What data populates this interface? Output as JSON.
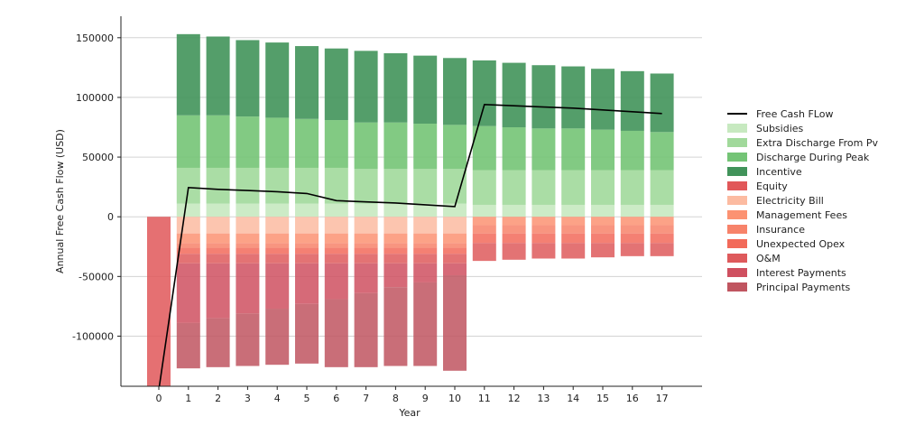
{
  "chart_data": {
    "type": "bar",
    "title": "",
    "xlabel": "Year",
    "ylabel": "Annual Free Cash Flow (USD)",
    "ylim": [
      -142000,
      168000
    ],
    "yticks": [
      150000,
      100000,
      50000,
      0,
      -50000,
      -100000
    ],
    "categories": [
      "0",
      "1",
      "2",
      "3",
      "4",
      "5",
      "6",
      "7",
      "8",
      "9",
      "10",
      "11",
      "12",
      "13",
      "14",
      "15",
      "16",
      "17"
    ],
    "positive_series": [
      {
        "name": "Subsidies",
        "color": "#c7e9c0",
        "values": [
          0,
          11000,
          11000,
          11000,
          11000,
          11000,
          11000,
          11000,
          11000,
          11000,
          11000,
          10000,
          10000,
          10000,
          10000,
          10000,
          10000,
          10000
        ]
      },
      {
        "name": "Extra Discharge From Pv",
        "color": "#a1d99b",
        "values": [
          0,
          30000,
          30000,
          30000,
          30000,
          30000,
          30000,
          29000,
          29000,
          29000,
          29000,
          29000,
          29000,
          29000,
          29000,
          29000,
          29000,
          29000
        ]
      },
      {
        "name": "Discharge During Peak",
        "color": "#74c476",
        "values": [
          0,
          44000,
          44000,
          43000,
          42000,
          41000,
          40000,
          39000,
          39000,
          38000,
          37000,
          37000,
          36000,
          35000,
          35000,
          34000,
          33000,
          32000
        ]
      },
      {
        "name": "Incentive",
        "color": "#41935a",
        "values": [
          0,
          68000,
          66000,
          64000,
          63000,
          61000,
          60000,
          60000,
          58000,
          57000,
          56000,
          55000,
          54000,
          53000,
          52000,
          51000,
          50000,
          49000
        ]
      }
    ],
    "negative_series": [
      {
        "name": "Equity",
        "color": "#e15759",
        "values": [
          145000,
          0,
          0,
          0,
          0,
          0,
          0,
          0,
          0,
          0,
          0,
          0,
          0,
          0,
          0,
          0,
          0,
          0
        ]
      },
      {
        "name": "Electricity Bill",
        "color": "#fcbba1",
        "values": [
          0,
          14000,
          14000,
          14000,
          14000,
          14000,
          14000,
          14000,
          14000,
          14000,
          14000,
          0,
          0,
          0,
          0,
          0,
          0,
          0
        ]
      },
      {
        "name": "Management Fees",
        "color": "#fc9272",
        "values": [
          0,
          8000,
          8000,
          8000,
          8000,
          8000,
          8000,
          8000,
          8000,
          8000,
          8000,
          7000,
          7000,
          7000,
          7000,
          7000,
          7000,
          7000
        ]
      },
      {
        "name": "Insurance",
        "color": "#f7836a",
        "values": [
          0,
          4000,
          4000,
          4000,
          4000,
          4000,
          4000,
          4000,
          4000,
          4000,
          4000,
          7000,
          7000,
          7000,
          7000,
          7000,
          7000,
          7000
        ]
      },
      {
        "name": "Unexpected Opex",
        "color": "#f26a5a",
        "values": [
          0,
          5000,
          5000,
          5000,
          5000,
          5000,
          5000,
          5000,
          5000,
          5000,
          5000,
          8000,
          8000,
          8000,
          8000,
          8000,
          8000,
          8000
        ]
      },
      {
        "name": "O&M",
        "color": "#de5a5c",
        "values": [
          0,
          8000,
          8000,
          8000,
          8000,
          8000,
          8000,
          8000,
          8000,
          8000,
          8000,
          15000,
          14000,
          13000,
          13000,
          12000,
          11000,
          11000
        ]
      },
      {
        "name": "Interest Payments",
        "color": "#cf5060",
        "values": [
          0,
          50000,
          46000,
          42000,
          38000,
          34000,
          30000,
          25000,
          20000,
          16000,
          10000,
          0,
          0,
          0,
          0,
          0,
          0,
          0
        ]
      },
      {
        "name": "Principal Payments",
        "color": "#c05560",
        "values": [
          0,
          38000,
          41000,
          44000,
          47000,
          50000,
          57000,
          62000,
          66000,
          70000,
          80000,
          0,
          0,
          0,
          0,
          0,
          0,
          0
        ]
      }
    ],
    "line": {
      "name": "Free Cash FLow",
      "color": "#000000",
      "values": [
        -145000,
        24500,
        23000,
        22000,
        21000,
        19500,
        13500,
        12500,
        11500,
        10000,
        8500,
        94000,
        93000,
        92000,
        91000,
        89500,
        88000,
        86500
      ]
    },
    "legend_position": "right",
    "grid": true
  }
}
